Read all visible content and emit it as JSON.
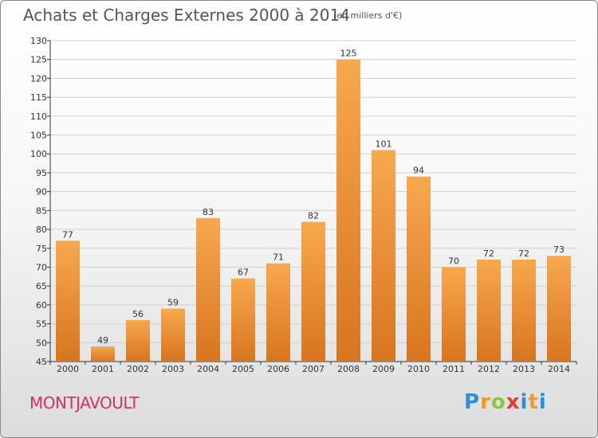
{
  "header": {
    "title": "Achats et Charges Externes 2000 à 2014",
    "unit": "(en milliers d'€)"
  },
  "footer": {
    "commune": "MONTJAVOULT",
    "brand_letters": [
      "P",
      "r",
      "o",
      "x",
      "i",
      "t",
      "i"
    ]
  },
  "colors": {
    "bar_light": "#f7a84d",
    "bar_dark": "#d8751f",
    "grid": "#cfcfcf",
    "commune": "#d0336a"
  },
  "chart_data": {
    "type": "bar",
    "title": "Achats et Charges Externes 2000 à 2014",
    "subtitle": "(en milliers d'€)",
    "categories": [
      "2000",
      "2001",
      "2002",
      "2003",
      "2004",
      "2005",
      "2006",
      "2007",
      "2008",
      "2009",
      "2010",
      "2011",
      "2012",
      "2013",
      "2014"
    ],
    "values": [
      77,
      49,
      56,
      59,
      83,
      67,
      71,
      82,
      125,
      101,
      94,
      70,
      72,
      72,
      73
    ],
    "ylim": [
      45,
      130
    ],
    "yticks": [
      45,
      50,
      55,
      60,
      65,
      70,
      75,
      80,
      85,
      90,
      95,
      100,
      105,
      110,
      115,
      120,
      125,
      130
    ],
    "xlabel": "",
    "ylabel": "",
    "grid": true,
    "legend": "none"
  }
}
